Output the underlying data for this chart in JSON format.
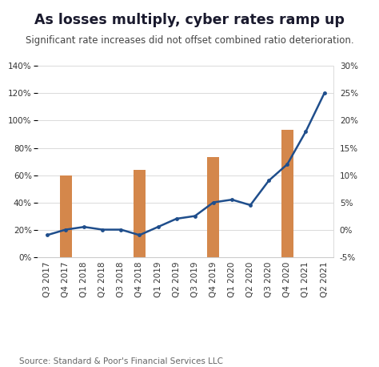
{
  "title": "As losses multiply, cyber rates ramp up",
  "subtitle": "Significant rate increases did not offset combined ratio deterioration.",
  "source": "Source: Standard & Poor's Financial Services LLC",
  "categories": [
    "Q3 2017",
    "Q4 2017",
    "Q1 2018",
    "Q2 2018",
    "Q3 2018",
    "Q4 2018",
    "Q1 2019",
    "Q2 2019",
    "Q3 2019",
    "Q4 2019",
    "Q1 2020",
    "Q2 2020",
    "Q3 2020",
    "Q4 2020",
    "Q1 2021",
    "Q2 2021"
  ],
  "bar_values": [
    null,
    60,
    null,
    null,
    null,
    64,
    null,
    null,
    null,
    73,
    null,
    null,
    null,
    93,
    null,
    null
  ],
  "line_right_values": [
    -1.0,
    0.0,
    0.5,
    0.0,
    0.0,
    -1.0,
    0.5,
    2.0,
    2.5,
    5.0,
    5.5,
    4.5,
    9.0,
    12.0,
    18.0,
    25.0
  ],
  "bar_color": "#D4874B",
  "line_color": "#1F4E8C",
  "left_ylim": [
    0,
    140
  ],
  "right_ylim": [
    -5,
    30
  ],
  "left_yticks": [
    0,
    20,
    40,
    60,
    80,
    100,
    120,
    140
  ],
  "right_yticks": [
    -5,
    0,
    5,
    10,
    15,
    20,
    25,
    30
  ],
  "left_yticklabels": [
    "0%",
    "20%",
    "40%",
    "60%",
    "80%",
    "100%",
    "120%",
    "140%"
  ],
  "right_yticklabels": [
    "-5%",
    "0%",
    "5%",
    "10%",
    "15%",
    "20%",
    "25%",
    "30%"
  ],
  "background_color": "#ffffff",
  "title_color": "#1a1a2e",
  "subtitle_color": "#444444",
  "title_fontsize": 12.5,
  "subtitle_fontsize": 8.5,
  "tick_fontsize": 7.5,
  "legend_fontsize": 8,
  "source_fontsize": 7.5
}
